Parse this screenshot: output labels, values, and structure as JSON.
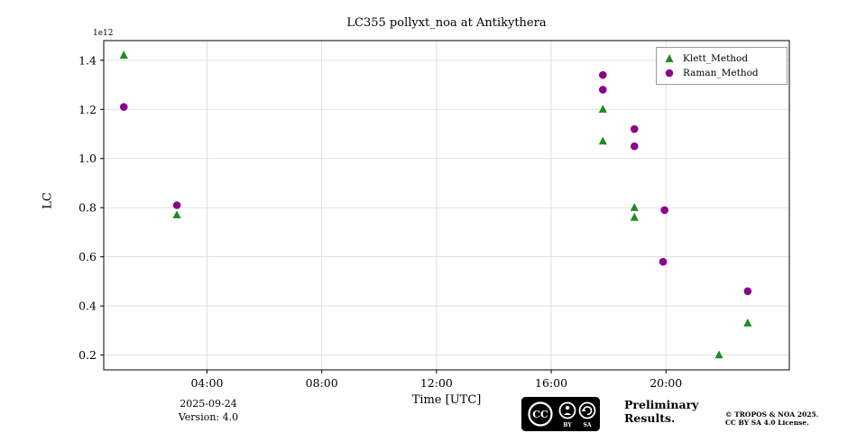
{
  "chart_data": {
    "type": "scatter",
    "title": "LC355 pollyxt_noa at Antikythera",
    "xlabel": "Time [UTC]",
    "ylabel": "LC",
    "offset_text": "1e12",
    "xlim": [
      0.4,
      24.3
    ],
    "ylim": [
      0.14,
      1.48
    ],
    "xticks": [
      4,
      8,
      12,
      16,
      20
    ],
    "xtick_labels": [
      "04:00",
      "08:00",
      "12:00",
      "16:00",
      "20:00"
    ],
    "yticks": [
      0.2,
      0.4,
      0.6,
      0.8,
      1.0,
      1.2,
      1.4
    ],
    "grid": true,
    "grid_color": "#d9d9d9",
    "frame_color": "#000000",
    "legend_position": "upper right",
    "series": [
      {
        "name": "Klett_Method",
        "marker": "triangle",
        "color": "#228B22",
        "points": [
          [
            1.1,
            1.42
          ],
          [
            2.95,
            0.77
          ],
          [
            17.8,
            1.2
          ],
          [
            17.8,
            1.07
          ],
          [
            18.9,
            0.8
          ],
          [
            18.9,
            0.76
          ],
          [
            21.85,
            0.2
          ],
          [
            22.85,
            0.33
          ]
        ]
      },
      {
        "name": "Raman_Method",
        "marker": "circle",
        "color": "#8B008B",
        "points": [
          [
            1.1,
            1.21
          ],
          [
            2.95,
            0.81
          ],
          [
            17.8,
            1.34
          ],
          [
            17.8,
            1.28
          ],
          [
            18.9,
            1.12
          ],
          [
            18.9,
            1.05
          ],
          [
            19.95,
            0.79
          ],
          [
            19.9,
            0.58
          ],
          [
            22.85,
            0.46
          ]
        ]
      }
    ]
  },
  "footer": {
    "date": "2025-09-24",
    "version": "Version: 4.0",
    "preliminary_line1": "Preliminary",
    "preliminary_line2": "Results.",
    "preliminary_color": "#ff4040",
    "copyright_line1": "© TROPOS & NOA 2025.",
    "copyright_line2": "CC BY SA 4.0 License.",
    "badge_cc": "CC",
    "badge_by": "BY",
    "badge_sa": "SA"
  }
}
